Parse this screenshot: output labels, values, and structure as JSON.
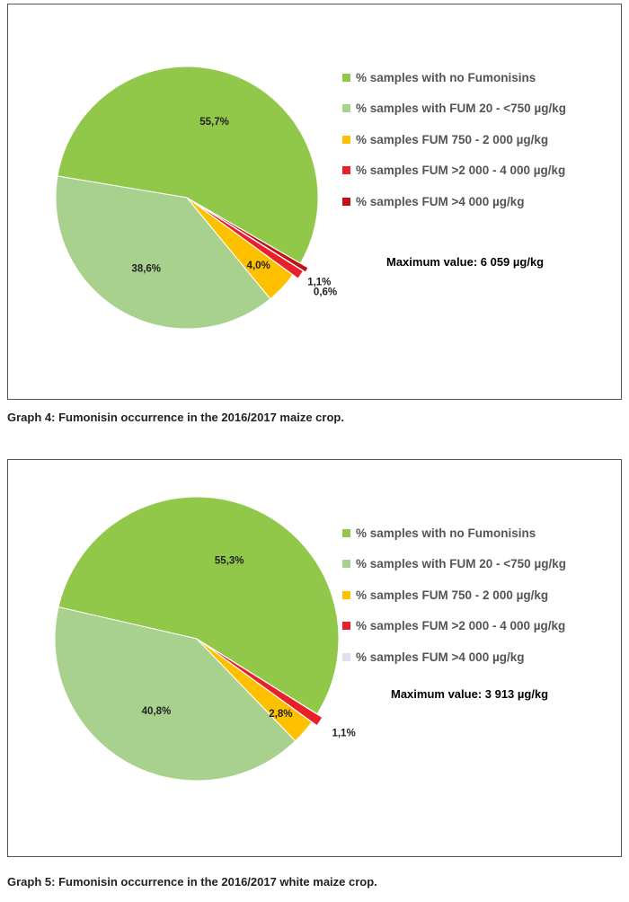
{
  "chart_data": [
    {
      "type": "pie",
      "slices": [
        {
          "label": "% samples with no Fumonisins",
          "value": 55.7,
          "value_label": "55,7%",
          "color": "#92c84a"
        },
        {
          "label": "% samples with FUM 20 - <750 µg/kg",
          "value": 38.6,
          "value_label": "38,6%",
          "color": "#a9d18e"
        },
        {
          "label": "% samples FUM 750 - 2 000 µg/kg",
          "value": 4.0,
          "value_label": "4,0%",
          "color": "#ffc000"
        },
        {
          "label": "% samples FUM >2 000 - 4 000 µg/kg",
          "value": 1.1,
          "value_label": "1,1%",
          "color": "#e8202a"
        },
        {
          "label": "% samples FUM >4 000 µg/kg",
          "value": 0.6,
          "value_label": "0,6%",
          "color": "#c0121d"
        }
      ],
      "annotation": "Maximum value: 6 059 µg/kg",
      "caption": "Graph 4: Fumonisin occurrence in the 2016/2017 maize crop."
    },
    {
      "type": "pie",
      "slices": [
        {
          "label": "% samples with no Fumonisins",
          "value": 55.3,
          "value_label": "55,3%",
          "color": "#92c84a"
        },
        {
          "label": "% samples with FUM 20 - <750 µg/kg",
          "value": 40.8,
          "value_label": "40,8%",
          "color": "#a9d18e"
        },
        {
          "label": "% samples FUM 750 - 2 000 µg/kg",
          "value": 2.8,
          "value_label": "2,8%",
          "color": "#ffc000"
        },
        {
          "label": "% samples FUM >2 000 - 4 000 µg/kg",
          "value": 1.1,
          "value_label": "1,1%",
          "color": "#e8202a"
        },
        {
          "label": "% samples FUM >4 000 µg/kg",
          "value": 0,
          "value_label": "",
          "color": "#dde3ee"
        }
      ],
      "annotation": "Maximum value: 3 913 µg/kg",
      "caption": "Graph 5: Fumonisin occurrence in the 2016/2017 white maize crop."
    }
  ]
}
